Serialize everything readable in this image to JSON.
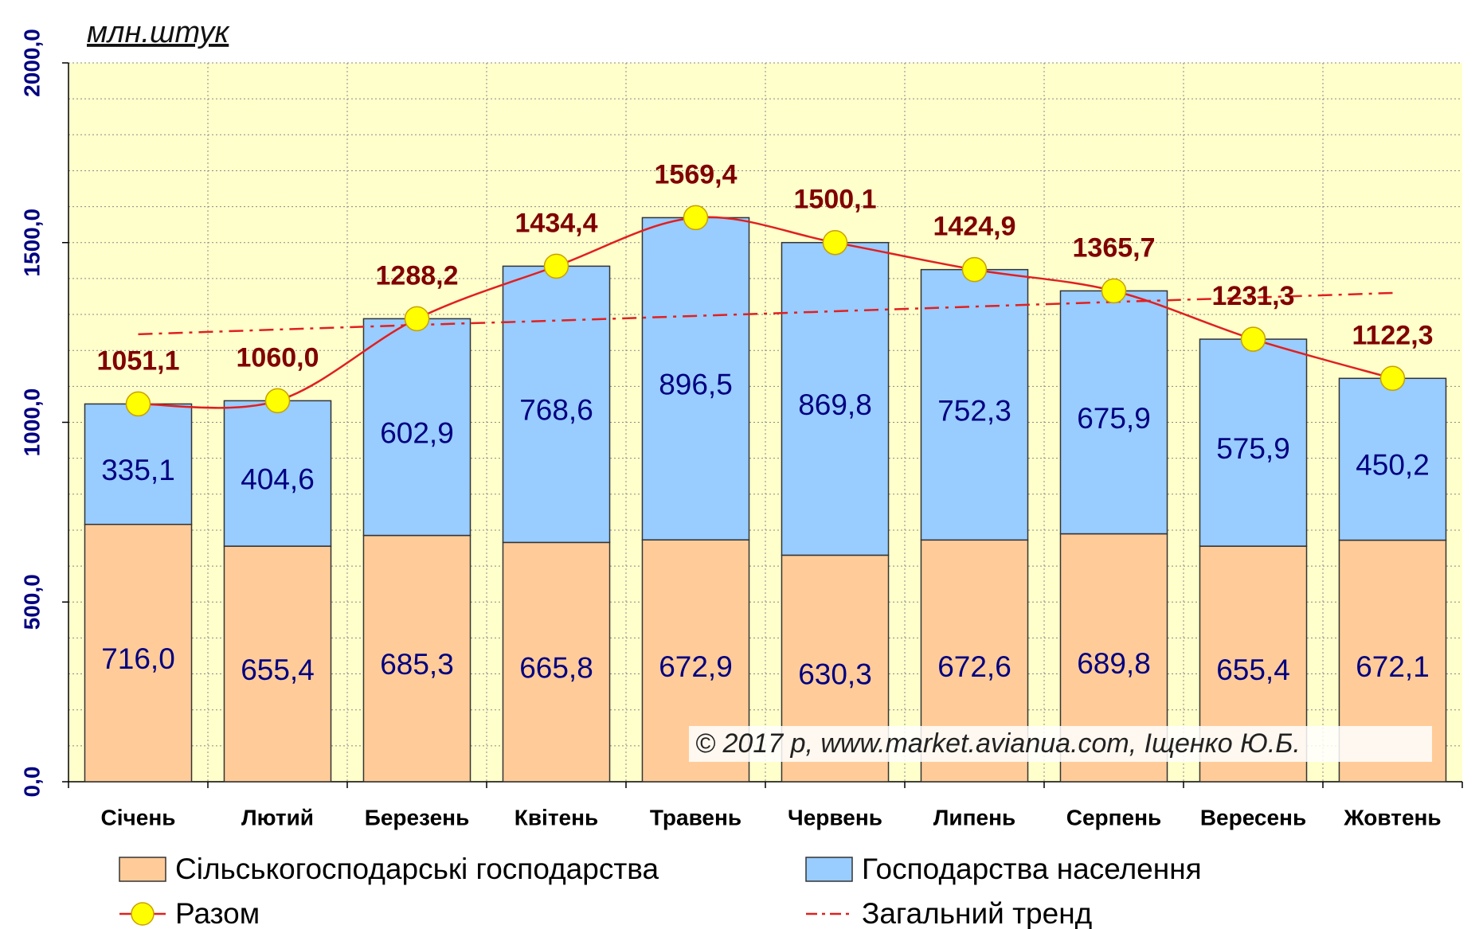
{
  "chart_data": {
    "type": "stacked-bar-line",
    "title": "млн.штук",
    "annotation": "© 2017 р, www.market.avianua.com, Іщенко Ю.Б.",
    "categories": [
      "Січень",
      "Лютий",
      "Березень",
      "Квітень",
      "Травень",
      "Червень",
      "Липень",
      "Серпень",
      "Вересень",
      "Жовтень"
    ],
    "series": [
      {
        "name": "Сільськогосподарські господарства",
        "kind": "bar",
        "color": "#ffcc99",
        "values": [
          716.0,
          655.4,
          685.3,
          665.8,
          672.9,
          630.3,
          672.6,
          689.8,
          655.4,
          672.1
        ],
        "value_labels": [
          "716,0",
          "655,4",
          "685,3",
          "665,8",
          "672,9",
          "630,3",
          "672,6",
          "689,8",
          "655,4",
          "672,1"
        ]
      },
      {
        "name": "Господарства населення",
        "kind": "bar",
        "color": "#99ccff",
        "values": [
          335.1,
          404.6,
          602.9,
          768.6,
          896.5,
          869.8,
          752.3,
          675.9,
          575.9,
          450.2
        ],
        "value_labels": [
          "335,1",
          "404,6",
          "602,9",
          "768,6",
          "896,5",
          "869,8",
          "752,3",
          "675,9",
          "575,9",
          "450,2"
        ]
      },
      {
        "name": "Разом",
        "kind": "line",
        "color": "#e02020",
        "marker_color": "#ffff00",
        "values": [
          1051.1,
          1060.0,
          1288.2,
          1434.4,
          1569.4,
          1500.1,
          1424.9,
          1365.7,
          1231.3,
          1122.3
        ],
        "value_labels": [
          "1051,1",
          "1060,0",
          "1288,2",
          "1434,4",
          "1569,4",
          "1500,1",
          "1424,9",
          "1365,7",
          "1231,3",
          "1122,3"
        ]
      },
      {
        "name": "Загальний тренд",
        "kind": "trend",
        "color": "#e02020",
        "values": [
          1245,
          1258,
          1271,
          1283,
          1296,
          1309,
          1322,
          1335,
          1347,
          1360
        ]
      }
    ],
    "ylim": [
      0,
      2000
    ],
    "yticks": [
      {
        "value": 0,
        "label": "0,0"
      },
      {
        "value": 500,
        "label": "500,0"
      },
      {
        "value": 1000,
        "label": "1000,0"
      },
      {
        "value": 1500,
        "label": "1500,0"
      },
      {
        "value": 2000,
        "label": "2000,0"
      }
    ],
    "yticks_minor": [
      100,
      200,
      300,
      400,
      600,
      700,
      800,
      900,
      1100,
      1200,
      1300,
      1400,
      1600,
      1700,
      1800,
      1900
    ],
    "grid": true
  }
}
